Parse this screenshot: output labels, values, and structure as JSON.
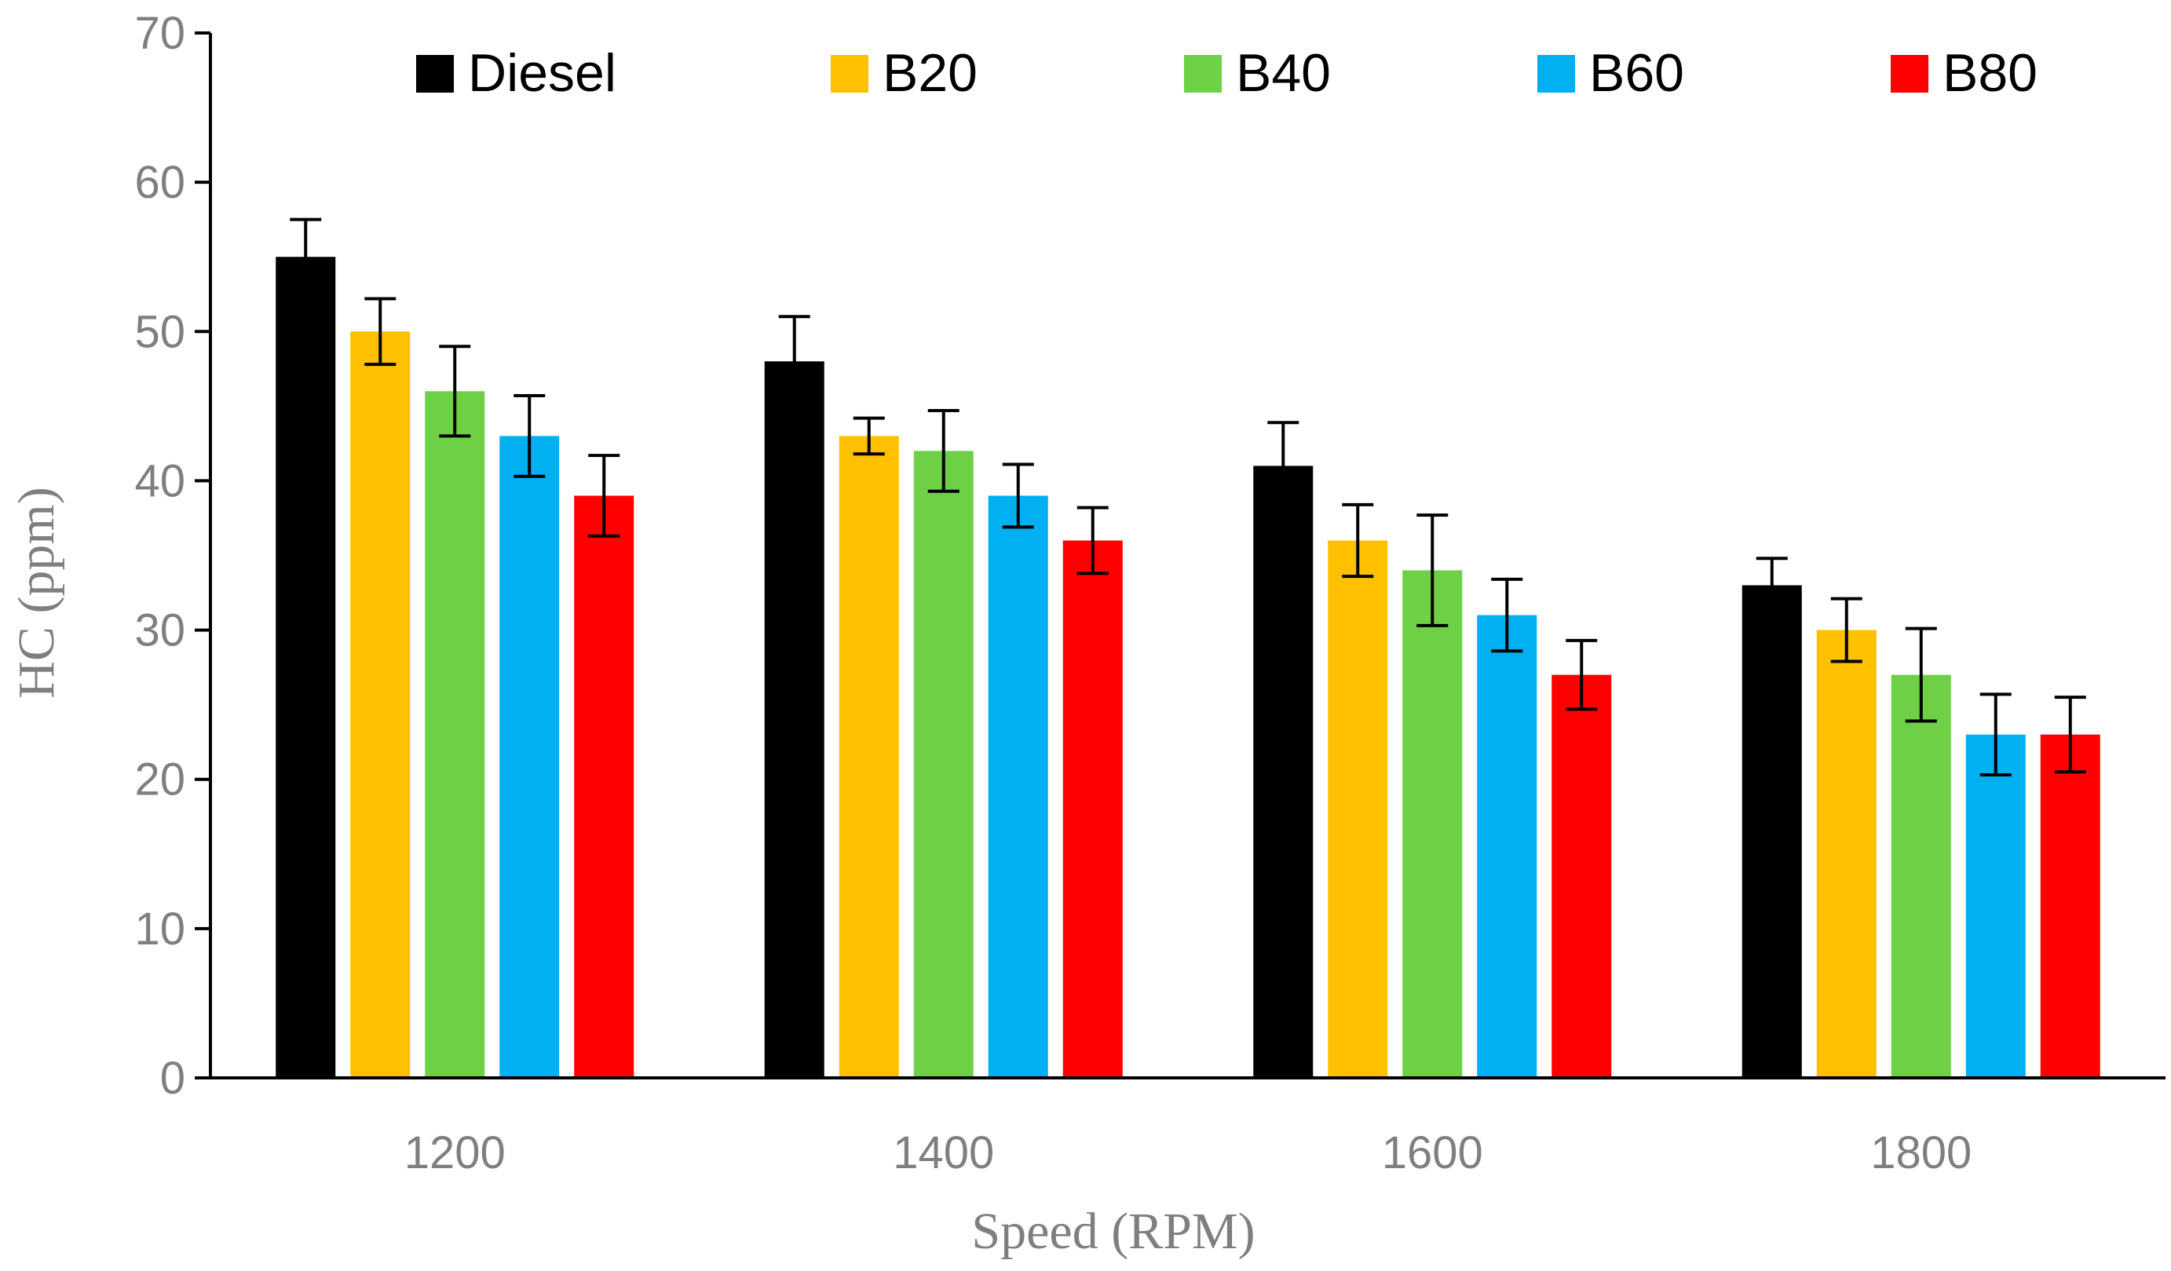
{
  "chart_data": {
    "type": "bar",
    "title": "",
    "xlabel": "Speed (RPM)",
    "ylabel": "HC (ppm)",
    "ylim": [
      0,
      70
    ],
    "yticks": [
      0,
      10,
      20,
      30,
      40,
      50,
      60,
      70
    ],
    "categories": [
      "1200",
      "1400",
      "1600",
      "1800"
    ],
    "legend_position": "top",
    "series": [
      {
        "name": "Diesel",
        "color": "#000000",
        "values": [
          55,
          48,
          41,
          33
        ],
        "errors": [
          2.5,
          3.0,
          2.9,
          1.8
        ]
      },
      {
        "name": "B20",
        "color": "#FFC000",
        "values": [
          50,
          43,
          36,
          30
        ],
        "errors": [
          2.2,
          1.2,
          2.4,
          2.1
        ]
      },
      {
        "name": "B40",
        "color": "#6DD045",
        "values": [
          46,
          42,
          34,
          27
        ],
        "errors": [
          3.0,
          2.7,
          3.7,
          3.1
        ]
      },
      {
        "name": "B60",
        "color": "#00B0F0",
        "values": [
          43,
          39,
          31,
          23
        ],
        "errors": [
          2.7,
          2.1,
          2.4,
          2.7
        ]
      },
      {
        "name": "B80",
        "color": "#FF0000",
        "values": [
          39,
          36,
          27,
          23
        ],
        "errors": [
          2.7,
          2.2,
          2.3,
          2.5
        ]
      }
    ]
  }
}
